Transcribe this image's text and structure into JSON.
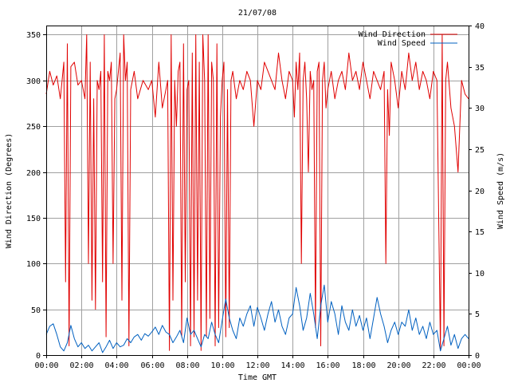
{
  "chart_data": {
    "type": "line",
    "title": "21/07/08",
    "xlabel": "Time GMT",
    "ylabel_left": "Wind Direction (Degrees)",
    "ylabel_right": "Wind Speed (m/s)",
    "x_ticks": [
      "00:00",
      "02:00",
      "04:00",
      "06:00",
      "08:00",
      "10:00",
      "12:00",
      "14:00",
      "16:00",
      "18:00",
      "20:00",
      "22:00",
      "00:00"
    ],
    "x_range_hours": [
      0,
      24
    ],
    "y_left_ticks": [
      0,
      50,
      100,
      150,
      200,
      250,
      300,
      350
    ],
    "y_left_range": [
      0,
      360
    ],
    "y_right_ticks": [
      0,
      5,
      10,
      15,
      20,
      25,
      30,
      35,
      40
    ],
    "y_right_range": [
      0,
      40
    ],
    "grid": true,
    "legend_position": "top-right",
    "series": [
      {
        "name": "Wind Direction",
        "axis": "left",
        "color": "#e00000",
        "x_hours": [
          0.0,
          0.2,
          0.4,
          0.6,
          0.8,
          1.0,
          1.1,
          1.2,
          1.3,
          1.4,
          1.6,
          1.8,
          2.0,
          2.2,
          2.3,
          2.4,
          2.5,
          2.6,
          2.7,
          2.8,
          2.9,
          3.0,
          3.1,
          3.2,
          3.3,
          3.4,
          3.5,
          3.6,
          3.7,
          3.8,
          3.9,
          4.0,
          4.2,
          4.3,
          4.4,
          4.5,
          4.6,
          4.7,
          4.8,
          5.0,
          5.2,
          5.5,
          5.8,
          6.0,
          6.2,
          6.4,
          6.6,
          6.8,
          6.9,
          7.0,
          7.1,
          7.2,
          7.3,
          7.4,
          7.5,
          7.6,
          7.7,
          7.8,
          7.9,
          8.0,
          8.1,
          8.2,
          8.3,
          8.4,
          8.5,
          8.6,
          8.7,
          8.8,
          8.9,
          9.0,
          9.1,
          9.2,
          9.3,
          9.4,
          9.5,
          9.6,
          9.7,
          9.8,
          9.9,
          10.0,
          10.1,
          10.2,
          10.3,
          10.4,
          10.5,
          10.6,
          10.8,
          11.0,
          11.2,
          11.4,
          11.6,
          11.8,
          12.0,
          12.2,
          12.4,
          12.6,
          12.8,
          13.0,
          13.2,
          13.4,
          13.6,
          13.8,
          14.0,
          14.1,
          14.2,
          14.3,
          14.4,
          14.5,
          14.6,
          14.7,
          14.8,
          14.9,
          15.0,
          15.1,
          15.2,
          15.3,
          15.4,
          15.5,
          15.6,
          15.7,
          15.8,
          15.9,
          16.0,
          16.1,
          16.2,
          16.4,
          16.6,
          16.8,
          17.0,
          17.2,
          17.4,
          17.6,
          17.8,
          18.0,
          18.2,
          18.4,
          18.6,
          18.8,
          19.0,
          19.2,
          19.3,
          19.4,
          19.5,
          19.6,
          19.8,
          20.0,
          20.2,
          20.4,
          20.6,
          20.8,
          21.0,
          21.2,
          21.4,
          21.6,
          21.8,
          22.0,
          22.2,
          22.4,
          22.5,
          22.6,
          22.7,
          22.8,
          23.0,
          23.2,
          23.4,
          23.6,
          23.8,
          24.0
        ],
        "values": [
          285,
          310,
          295,
          305,
          280,
          320,
          80,
          340,
          10,
          315,
          320,
          295,
          300,
          280,
          350,
          100,
          320,
          60,
          280,
          50,
          300,
          290,
          310,
          80,
          350,
          20,
          310,
          300,
          320,
          100,
          280,
          290,
          330,
          60,
          350,
          300,
          320,
          10,
          290,
          310,
          280,
          300,
          290,
          300,
          260,
          320,
          270,
          290,
          300,
          5,
          350,
          60,
          300,
          250,
          310,
          320,
          20,
          340,
          80,
          290,
          300,
          10,
          330,
          20,
          350,
          60,
          320,
          5,
          350,
          300,
          20,
          350,
          40,
          320,
          300,
          10,
          340,
          30,
          260,
          300,
          320,
          20,
          290,
          30,
          300,
          310,
          280,
          300,
          290,
          310,
          300,
          250,
          300,
          290,
          320,
          310,
          300,
          290,
          330,
          300,
          280,
          310,
          300,
          260,
          320,
          290,
          330,
          100,
          300,
          320,
          280,
          200,
          310,
          290,
          300,
          30,
          310,
          320,
          10,
          300,
          320,
          270,
          290,
          300,
          310,
          280,
          300,
          310,
          290,
          330,
          300,
          310,
          290,
          320,
          300,
          280,
          310,
          300,
          290,
          310,
          100,
          290,
          240,
          320,
          300,
          270,
          310,
          290,
          330,
          300,
          320,
          290,
          310,
          300,
          280,
          310,
          300,
          5,
          350,
          10,
          300,
          320,
          270,
          250,
          200,
          300,
          285,
          280
        ]
      },
      {
        "name": "Wind Speed",
        "axis": "right",
        "color": "#0060c0",
        "x_hours": [
          0.0,
          0.2,
          0.4,
          0.6,
          0.8,
          1.0,
          1.2,
          1.4,
          1.6,
          1.8,
          2.0,
          2.2,
          2.4,
          2.6,
          2.8,
          3.0,
          3.2,
          3.4,
          3.6,
          3.8,
          4.0,
          4.2,
          4.4,
          4.6,
          4.8,
          5.0,
          5.2,
          5.4,
          5.6,
          5.8,
          6.0,
          6.2,
          6.4,
          6.6,
          6.8,
          7.0,
          7.2,
          7.4,
          7.6,
          7.8,
          8.0,
          8.2,
          8.4,
          8.6,
          8.8,
          9.0,
          9.2,
          9.4,
          9.6,
          9.8,
          10.0,
          10.2,
          10.4,
          10.6,
          10.8,
          11.0,
          11.2,
          11.4,
          11.6,
          11.8,
          12.0,
          12.2,
          12.4,
          12.6,
          12.8,
          13.0,
          13.2,
          13.4,
          13.6,
          13.8,
          14.0,
          14.2,
          14.4,
          14.6,
          14.8,
          15.0,
          15.2,
          15.4,
          15.6,
          15.8,
          16.0,
          16.2,
          16.4,
          16.6,
          16.8,
          17.0,
          17.2,
          17.4,
          17.6,
          17.8,
          18.0,
          18.2,
          18.4,
          18.6,
          18.8,
          19.0,
          19.2,
          19.4,
          19.6,
          19.8,
          20.0,
          20.2,
          20.4,
          20.6,
          20.8,
          21.0,
          21.2,
          21.4,
          21.6,
          21.8,
          22.0,
          22.2,
          22.4,
          22.6,
          22.8,
          23.0,
          23.2,
          23.4,
          23.6,
          23.8,
          24.0
        ],
        "values": [
          2.5,
          3.5,
          3.8,
          2.5,
          1.0,
          0.5,
          1.5,
          3.6,
          2.0,
          1.0,
          1.5,
          0.8,
          1.2,
          0.5,
          1.0,
          1.5,
          0.3,
          1.0,
          1.8,
          0.8,
          1.5,
          1.0,
          1.2,
          2.0,
          1.5,
          2.2,
          2.5,
          1.8,
          2.6,
          2.3,
          2.8,
          3.4,
          2.5,
          3.6,
          2.8,
          2.5,
          1.5,
          2.2,
          3.0,
          1.5,
          4.5,
          2.5,
          3.0,
          2.0,
          1.0,
          2.5,
          2.0,
          4.0,
          2.5,
          1.5,
          4.2,
          6.8,
          4.5,
          3.0,
          2.0,
          4.5,
          3.5,
          5.0,
          6.0,
          3.5,
          5.8,
          4.5,
          3.0,
          5.0,
          6.5,
          4.0,
          5.5,
          3.5,
          2.5,
          4.5,
          5.0,
          8.2,
          6.0,
          3.0,
          4.5,
          7.5,
          5.0,
          2.0,
          6.0,
          8.5,
          4.0,
          6.5,
          5.0,
          2.5,
          6.0,
          4.0,
          3.0,
          5.5,
          3.5,
          4.8,
          3.0,
          4.5,
          2.0,
          4.5,
          7.0,
          5.0,
          3.5,
          1.5,
          3.0,
          4.0,
          2.5,
          4.0,
          3.5,
          5.5,
          3.0,
          4.5,
          2.5,
          3.5,
          2.0,
          4.0,
          2.5,
          3.0,
          0.5,
          2.0,
          3.5,
          1.2,
          2.5,
          0.8,
          2.0,
          2.5,
          2.0
        ]
      }
    ]
  }
}
